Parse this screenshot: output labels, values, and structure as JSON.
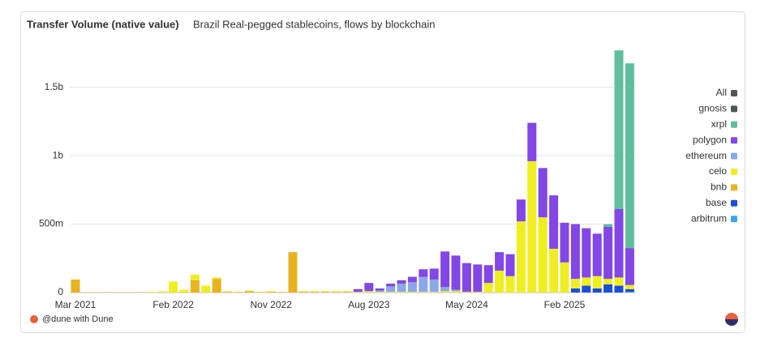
{
  "chart_data": {
    "type": "stacked_bar",
    "title": "Transfer Volume (native value)",
    "subtitle": "Brazil Real-pegged stablecoins, flows by blockchain",
    "footer": "@dune with Dune",
    "legend_all_label": "All",
    "legend_all_color": "#555555",
    "legend_position": "right",
    "grid": true,
    "categories": [
      "Mar 2021",
      null,
      null,
      null,
      null,
      null,
      null,
      null,
      null,
      "Feb 2022",
      null,
      null,
      null,
      null,
      null,
      null,
      null,
      null,
      "Nov 2022",
      null,
      null,
      null,
      null,
      null,
      null,
      null,
      null,
      "Aug 2023",
      null,
      null,
      null,
      null,
      null,
      null,
      null,
      null,
      "May 2024",
      null,
      null,
      null,
      null,
      null,
      null,
      null,
      null,
      "Feb 2025",
      null,
      null,
      null,
      null,
      null,
      null
    ],
    "ylim": [
      0,
      1830
    ],
    "yticks": [
      0,
      {
        "value": 500,
        "label": "500m"
      },
      {
        "value": 1000,
        "label": "1b"
      },
      {
        "value": 1500,
        "label": "1.5b"
      }
    ],
    "series": [
      {
        "name": "arbitrum",
        "color": "#3ea6e8",
        "values": [
          0,
          0,
          0,
          0,
          0,
          0,
          0,
          0,
          0,
          0,
          0,
          0,
          0,
          0,
          0,
          0,
          0,
          0,
          0,
          0,
          0,
          0,
          0,
          0,
          0,
          0,
          0,
          0,
          0,
          0,
          0,
          0,
          0,
          0,
          0,
          0,
          0,
          0,
          0,
          0,
          0,
          0,
          0,
          0,
          0,
          0,
          0,
          0,
          0,
          0,
          0,
          5
        ]
      },
      {
        "name": "base",
        "color": "#1a4fd8",
        "values": [
          0,
          0,
          0,
          0,
          0,
          0,
          0,
          0,
          0,
          0,
          0,
          0,
          0,
          0,
          0,
          0,
          0,
          0,
          0,
          0,
          0,
          0,
          0,
          0,
          0,
          0,
          0,
          0,
          0,
          0,
          0,
          0,
          0,
          0,
          0,
          0,
          0,
          0,
          0,
          0,
          0,
          0,
          0,
          0,
          0,
          0,
          30,
          50,
          30,
          60,
          50,
          20
        ]
      },
      {
        "name": "bnb",
        "color": "#e8b321",
        "values": [
          95,
          2,
          2,
          2,
          2,
          2,
          2,
          0,
          0,
          0,
          0,
          90,
          0,
          100,
          5,
          3,
          10,
          3,
          5,
          3,
          295,
          5,
          5,
          5,
          5,
          5,
          0,
          0,
          0,
          0,
          0,
          0,
          0,
          0,
          0,
          0,
          0,
          0,
          0,
          0,
          0,
          0,
          0,
          0,
          0,
          0,
          0,
          0,
          0,
          0,
          0,
          0
        ]
      },
      {
        "name": "celo",
        "color": "#eeee22",
        "values": [
          0,
          0,
          0,
          0,
          0,
          0,
          0,
          5,
          8,
          80,
          20,
          40,
          50,
          10,
          5,
          2,
          5,
          2,
          5,
          2,
          0,
          5,
          5,
          5,
          5,
          5,
          5,
          10,
          5,
          5,
          5,
          5,
          5,
          5,
          10,
          10,
          5,
          5,
          70,
          160,
          120,
          520,
          960,
          550,
          320,
          220,
          70,
          60,
          90,
          40,
          60,
          30
        ]
      },
      {
        "name": "ethereum",
        "color": "#8aa8e8",
        "values": [
          0,
          0,
          0,
          0,
          0,
          0,
          0,
          0,
          0,
          0,
          0,
          0,
          0,
          0,
          0,
          0,
          0,
          0,
          0,
          0,
          0,
          0,
          0,
          0,
          0,
          0,
          0,
          0,
          10,
          40,
          60,
          70,
          110,
          90,
          30,
          10,
          0,
          0,
          0,
          0,
          0,
          0,
          0,
          0,
          0,
          0,
          0,
          0,
          0,
          0,
          0,
          0
        ]
      },
      {
        "name": "polygon",
        "color": "#8247e5",
        "values": [
          0,
          0,
          0,
          0,
          0,
          0,
          0,
          0,
          0,
          0,
          0,
          0,
          0,
          0,
          0,
          0,
          0,
          0,
          0,
          0,
          0,
          0,
          0,
          0,
          0,
          0,
          20,
          60,
          15,
          20,
          25,
          40,
          55,
          80,
          260,
          250,
          210,
          200,
          130,
          135,
          160,
          160,
          280,
          360,
          390,
          290,
          400,
          360,
          310,
          380,
          500,
          270
        ]
      },
      {
        "name": "xrpl",
        "color": "#5fbf9c",
        "values": [
          0,
          0,
          0,
          0,
          0,
          0,
          0,
          0,
          0,
          0,
          0,
          0,
          0,
          0,
          0,
          0,
          0,
          0,
          0,
          0,
          0,
          0,
          0,
          0,
          0,
          0,
          0,
          0,
          0,
          0,
          0,
          0,
          0,
          0,
          0,
          0,
          0,
          0,
          0,
          0,
          0,
          0,
          0,
          0,
          0,
          0,
          0,
          0,
          0,
          20,
          1160,
          1350
        ]
      },
      {
        "name": "gnosis",
        "color": "#4a5a52",
        "values": [
          0,
          0,
          0,
          0,
          0,
          0,
          0,
          0,
          0,
          0,
          0,
          0,
          0,
          0,
          0,
          0,
          0,
          0,
          0,
          0,
          0,
          0,
          0,
          0,
          0,
          0,
          0,
          0,
          0,
          0,
          0,
          0,
          0,
          0,
          0,
          0,
          0,
          0,
          0,
          0,
          0,
          0,
          0,
          0,
          0,
          0,
          0,
          0,
          0,
          0,
          0,
          0
        ]
      }
    ]
  }
}
